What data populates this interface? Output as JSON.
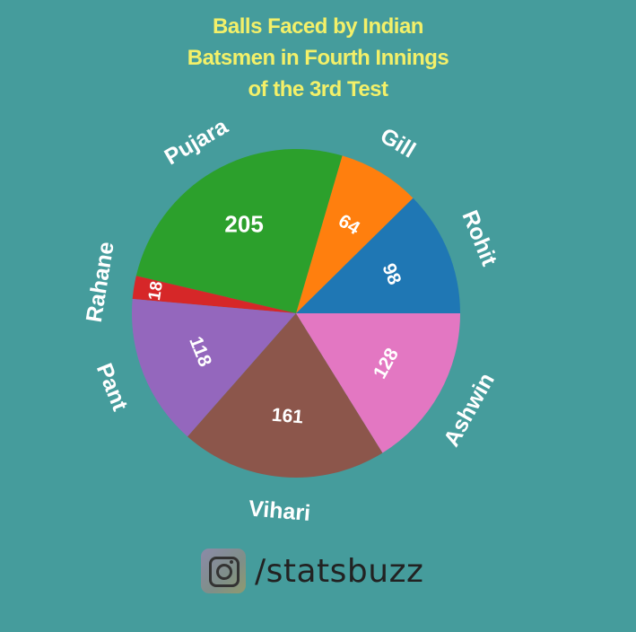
{
  "chart_data": {
    "type": "pie",
    "title_lines": [
      "Balls Faced by Indian",
      "Batsmen in Fourth Innings",
      "of the 3rd Test"
    ],
    "slices": [
      {
        "label": "Rohit",
        "value": 98,
        "color": "#1f77b4"
      },
      {
        "label": "Gill",
        "value": 64,
        "color": "#ff7f0e"
      },
      {
        "label": "Pujara",
        "value": 205,
        "color": "#2ca02c"
      },
      {
        "label": "Rahane",
        "value": 18,
        "color": "#d62728"
      },
      {
        "label": "Pant",
        "value": 118,
        "color": "#9467bd"
      },
      {
        "label": "Vihari",
        "value": 161,
        "color": "#8c564b"
      },
      {
        "label": "Ashwin",
        "value": 128,
        "color": "#e377c2"
      }
    ],
    "start_angle": "3 o'clock",
    "direction": "counterclockwise"
  },
  "footer": {
    "icon": "instagram-icon",
    "handle": "/statsbuzz"
  },
  "colors": {
    "background": "#459c9c",
    "title": "#f3f069",
    "labels": "#ffffff"
  }
}
